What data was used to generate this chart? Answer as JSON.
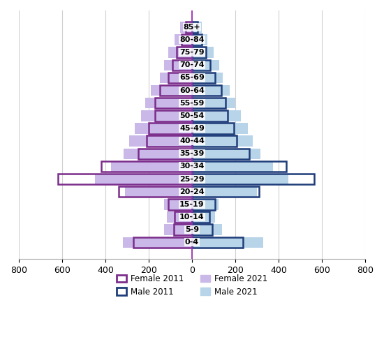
{
  "age_groups": [
    "0-4",
    "5-9",
    "10-14",
    "15-19",
    "20-24",
    "25-29",
    "30-34",
    "35-39",
    "40-44",
    "45-49",
    "50-54",
    "55-59",
    "60-64",
    "65-69",
    "70-74",
    "75-79",
    "80-84",
    "85+"
  ],
  "female_2011": [
    270,
    85,
    80,
    110,
    340,
    620,
    420,
    250,
    210,
    200,
    170,
    170,
    150,
    110,
    90,
    70,
    50,
    30
  ],
  "female_2021": [
    320,
    130,
    115,
    130,
    310,
    450,
    375,
    315,
    290,
    265,
    235,
    215,
    190,
    150,
    130,
    110,
    80,
    55
  ],
  "male_2011": [
    235,
    92,
    82,
    105,
    310,
    565,
    435,
    265,
    205,
    195,
    165,
    155,
    135,
    105,
    85,
    65,
    45,
    25
  ],
  "male_2021": [
    330,
    138,
    107,
    122,
    300,
    445,
    375,
    315,
    282,
    258,
    225,
    200,
    175,
    142,
    125,
    100,
    72,
    45
  ],
  "color_female_2011": "#7B2D8B",
  "color_male_2011": "#1F3D7A",
  "color_female_2021": "#C9B8E8",
  "color_male_2021": "#B8D4E8",
  "xlim": 800,
  "xticks": [
    -800,
    -600,
    -400,
    -200,
    0,
    200,
    400,
    600,
    800
  ],
  "xticklabels": [
    "800",
    "600",
    "400",
    "200",
    "0",
    "200",
    "400",
    "600",
    "800"
  ],
  "bar_height": 0.85,
  "background_color": "#ffffff",
  "grid_color": "#d0d0d0",
  "center_line_color": "#9B30B0"
}
